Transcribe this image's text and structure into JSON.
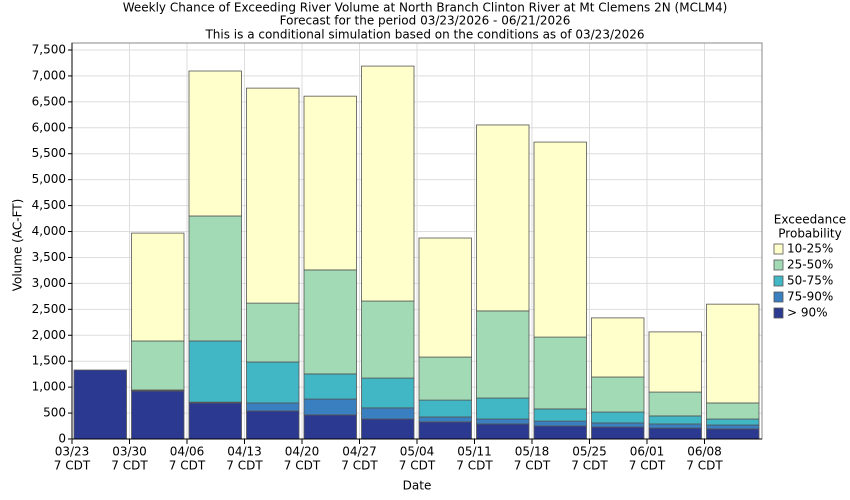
{
  "chart_data": {
    "type": "stacked_bar",
    "title": "Weekly Chance of Exceeding River Volume at North Branch Clinton River at Mt Clemens 2N (MCLM4)",
    "subtitle": "Forecast for the period 03/23/2026 - 06/21/2026",
    "subtitle2": "This is a conditional simulation based on the conditions as of 03/23/2026",
    "x_label": "Date",
    "y_label": "Volume (AC-FT)",
    "legend_title": [
      "Exceedance",
      "Probability"
    ],
    "legend_position": "right",
    "grid": true,
    "categories": [
      "03/23",
      "03/30",
      "04/06",
      "04/13",
      "04/20",
      "04/27",
      "05/04",
      "05/11",
      "05/18",
      "05/25",
      "06/01",
      "06/08"
    ],
    "category_suffix": "7 CDT",
    "ylim": [
      0,
      7500
    ],
    "yticks": [
      0,
      500,
      {
        "value": 1000,
        "label": "1,000"
      },
      {
        "value": 1500,
        "label": "1,500"
      },
      {
        "value": 2000,
        "label": "2,000"
      },
      {
        "value": 2500,
        "label": "2,500"
      },
      {
        "value": 3000,
        "label": "3,000"
      },
      {
        "value": 3500,
        "label": "3,500"
      },
      {
        "value": 4000,
        "label": "4,000"
      },
      {
        "value": 4500,
        "label": "4,500"
      },
      {
        "value": 5000,
        "label": "5,000"
      },
      {
        "value": 5500,
        "label": "5,500"
      },
      {
        "value": 6000,
        "label": "6,000"
      },
      {
        "value": 6500,
        "label": "6,500"
      },
      {
        "value": 7000,
        "label": "7,000"
      },
      {
        "value": 7500,
        "label": "7,500"
      }
    ],
    "series": [
      {
        "name": "> 90%",
        "color": "#2b3990",
        "values": [
          1330,
          925,
          695,
          540,
          465,
          385,
          330,
          290,
          250,
          230,
          210,
          195
        ]
      },
      {
        "name": "75-90%",
        "color": "#3a7fc0",
        "values": [
          0,
          10,
          15,
          155,
          305,
          215,
          95,
          95,
          95,
          80,
          80,
          75
        ]
      },
      {
        "name": "50-75%",
        "color": "#41b6c4",
        "values": [
          0,
          10,
          1180,
          790,
          485,
          575,
          325,
          405,
          235,
          210,
          155,
          115
        ]
      },
      {
        "name": "25-50%",
        "color": "#a1dab4",
        "values": [
          0,
          945,
          2410,
          1135,
          2005,
          1485,
          830,
          1680,
          1385,
          675,
          460,
          310
        ]
      },
      {
        "name": "10-25%",
        "color": "#ffffcc",
        "values": [
          0,
          2080,
          2795,
          4145,
          3350,
          4530,
          2295,
          3585,
          3760,
          1140,
          1160,
          1905
        ]
      }
    ]
  }
}
